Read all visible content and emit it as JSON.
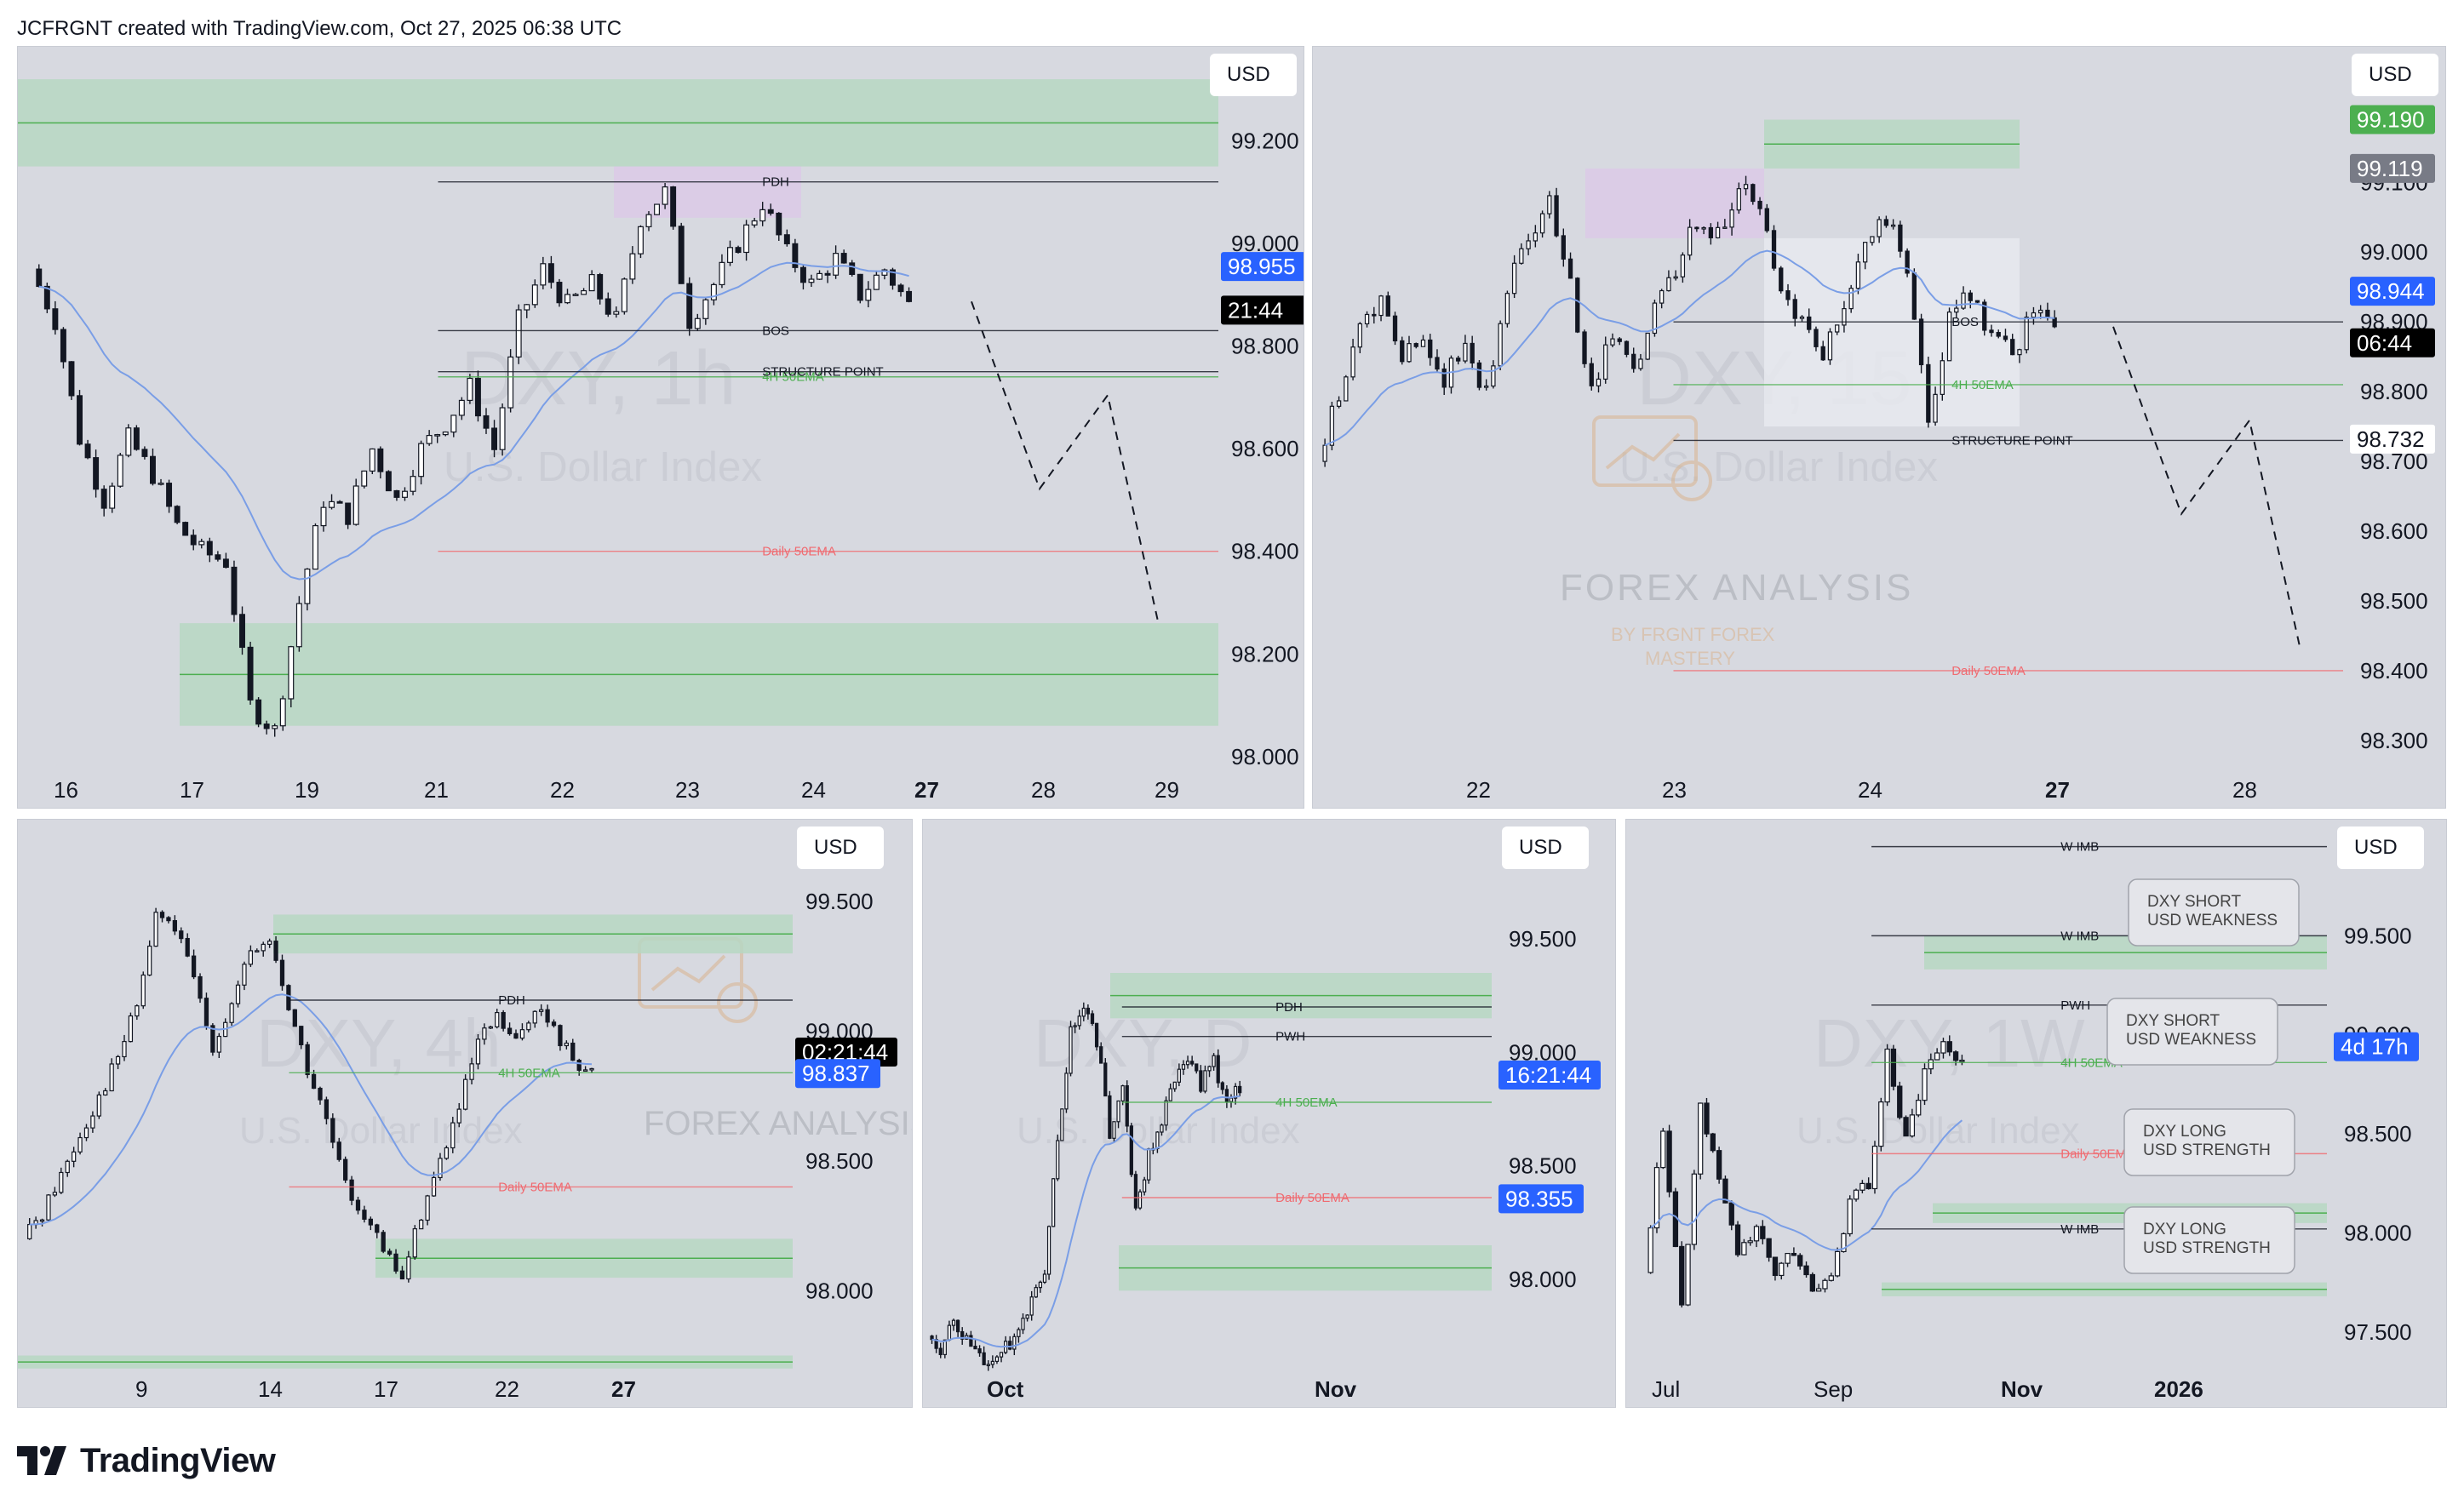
{
  "header": {
    "attribution": "JCFRGNT created with TradingView.com, Oct 27, 2025 06:38 UTC"
  },
  "footer": {
    "brand": "TradingView",
    "icon": "tradingview-logo-icon"
  },
  "watermark": {
    "title": "FOREX ANALYSIS",
    "subtitle_line1": "BY FRGNT FOREX",
    "subtitle_line2": "MASTERY",
    "icon": "chart-magnifier-icon"
  },
  "colors": {
    "panel_bg": "#d7d9e0",
    "zone_green": "#b7d7c2",
    "zone_purple": "#dcc9e6",
    "ema_blue": "#7a9ee6",
    "ema_red": "#f07a80",
    "price_blue": "#2962ff",
    "price_black": "#000000",
    "price_green": "#4caf50",
    "price_gray": "#787b86"
  },
  "chart_data": [
    {
      "id": "dxy-1h",
      "type": "candlestick",
      "symbol_watermark": "DXY, 1h",
      "name_watermark": "U.S. Dollar Index",
      "currency": "USD",
      "x_ticks": [
        "16",
        "17",
        "19",
        "21",
        "22",
        "23",
        "24",
        "27",
        "28",
        "29"
      ],
      "y_ticks": [
        "99.200",
        "99.000",
        "98.800",
        "98.600",
        "98.400",
        "98.200",
        "98.000"
      ],
      "ylim": [
        97.95,
        99.35
      ],
      "price_labels": [
        {
          "value": "98.955",
          "style": "blue"
        },
        {
          "value": "21:44",
          "style": "black"
        }
      ],
      "annotations": [
        "PDH",
        "BOS",
        "4H 50EMA",
        "STRUCTURE POINT",
        "Daily 50EMA"
      ],
      "close_path": [
        98.95,
        98.85,
        98.62,
        98.5,
        98.62,
        98.55,
        98.45,
        98.4,
        98.38,
        98.1,
        98.05,
        98.3,
        98.5,
        98.47,
        98.6,
        98.5,
        98.6,
        98.65,
        98.72,
        98.6,
        98.85,
        98.95,
        98.88,
        98.92,
        98.85,
        99.05,
        99.1,
        98.85,
        98.92,
        99.0,
        99.08,
        98.98,
        98.92,
        98.97,
        98.9,
        98.95,
        98.88
      ]
    },
    {
      "id": "dxy-15",
      "type": "candlestick",
      "symbol_watermark": "DXY, 15",
      "name_watermark": "U.S. Dollar Index",
      "currency": "USD",
      "x_ticks": [
        "22",
        "23",
        "24",
        "27",
        "28"
      ],
      "y_ticks": [
        "99.100",
        "99.000",
        "98.900",
        "98.800",
        "98.700",
        "98.600",
        "98.500",
        "98.400",
        "98.300"
      ],
      "ylim": [
        98.24,
        99.27
      ],
      "price_labels": [
        {
          "value": "99.190",
          "style": "green"
        },
        {
          "value": "99.119",
          "style": "gray"
        },
        {
          "value": "98.944",
          "style": "blue"
        },
        {
          "value": "06:44",
          "style": "black"
        },
        {
          "value": "98.732",
          "style": "white"
        }
      ],
      "annotations": [
        "BOS",
        "4H 50EMA",
        "STRUCTURE POINT",
        "Daily 50EMA"
      ],
      "close_path": [
        98.7,
        98.8,
        98.9,
        98.93,
        98.85,
        98.88,
        98.82,
        98.86,
        98.8,
        98.95,
        99.02,
        99.08,
        98.95,
        98.8,
        98.88,
        98.82,
        98.92,
        98.98,
        99.05,
        99.02,
        99.1,
        99.05,
        98.95,
        98.9,
        98.85,
        98.92,
        99.02,
        99.05,
        98.98,
        98.75,
        98.9,
        98.94,
        98.88,
        98.85,
        98.92,
        98.88
      ]
    },
    {
      "id": "dxy-4h",
      "type": "candlestick",
      "symbol_watermark": "DXY, 4h",
      "name_watermark": "U.S. Dollar Index",
      "currency": "USD",
      "x_ticks": [
        "9",
        "14",
        "17",
        "22",
        "27"
      ],
      "y_ticks": [
        "99.500",
        "99.000",
        "98.500",
        "98.000"
      ],
      "ylim": [
        97.65,
        99.75
      ],
      "price_labels": [
        {
          "value": "02:21:44",
          "style": "black"
        },
        {
          "value": "98.837",
          "style": "blue"
        }
      ],
      "annotations": [
        "PDH",
        "4H 50EMA",
        "Daily 50EMA"
      ],
      "close_path": [
        98.2,
        98.3,
        98.45,
        98.6,
        98.75,
        98.9,
        99.1,
        99.45,
        99.4,
        99.2,
        98.95,
        99.1,
        99.3,
        99.35,
        99.1,
        98.85,
        98.65,
        98.4,
        98.3,
        98.15,
        98.05,
        98.3,
        98.5,
        98.7,
        98.95,
        99.05,
        98.95,
        99.1,
        99.0,
        98.9,
        98.84
      ]
    },
    {
      "id": "dxy-d",
      "type": "candlestick",
      "symbol_watermark": "DXY, D",
      "name_watermark": "U.S. Dollar Index",
      "currency": "USD",
      "x_ticks": [
        "Oct",
        "Nov"
      ],
      "y_ticks": [
        "99.500",
        "99.000",
        "98.500",
        "98.000"
      ],
      "ylim": [
        97.55,
        99.95
      ],
      "price_labels": [
        {
          "value": "16:21:44",
          "style": "blue"
        },
        {
          "value": "98.355",
          "style": "blue"
        }
      ],
      "annotations": [
        "PDH",
        "PWH",
        "4H 50EMA",
        "Daily 50EMA"
      ],
      "close_path": [
        97.75,
        97.7,
        97.8,
        97.72,
        97.65,
        97.62,
        97.7,
        97.78,
        97.9,
        98.05,
        98.6,
        99.1,
        99.2,
        99.05,
        98.65,
        98.85,
        98.3,
        98.55,
        98.7,
        98.9,
        98.95,
        98.85,
        98.95,
        98.8,
        98.84
      ]
    },
    {
      "id": "dxy-1w",
      "type": "candlestick",
      "symbol_watermark": "DXY, 1W",
      "name_watermark": "U.S. Dollar Index",
      "currency": "USD",
      "x_ticks": [
        "Jul",
        "Sep",
        "Nov",
        "2026"
      ],
      "y_ticks": [
        "99.500",
        "99.000",
        "98.500",
        "98.000",
        "97.500"
      ],
      "ylim": [
        97.25,
        100.0
      ],
      "price_labels": [
        {
          "value": "4d 17h",
          "style": "blue"
        }
      ],
      "annotations": [
        "W IMB",
        "W IMB",
        "PWH",
        "4H 50EMA",
        "Daily 50EMA",
        "W IMB"
      ],
      "callouts": [
        "DXY SHORT",
        "USD WEAKNESS",
        "DXY SHORT",
        "USD WEAKNESS",
        "DXY LONG",
        "USD STRENGTH",
        "DXY LONG",
        "USD STRENGTH"
      ],
      "close_path": [
        97.8,
        98.55,
        97.6,
        98.65,
        98.3,
        97.85,
        98.05,
        97.8,
        97.9,
        97.7,
        97.8,
        98.15,
        98.25,
        98.9,
        98.45,
        98.8,
        98.95,
        98.85
      ]
    }
  ]
}
